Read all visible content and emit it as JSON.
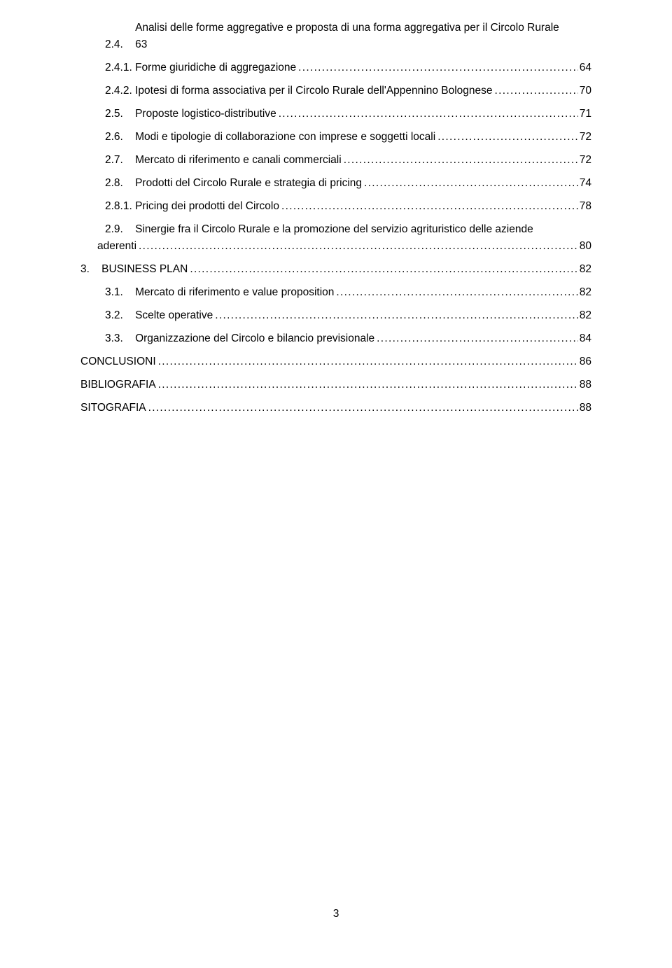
{
  "dots": "...............................................................................................................................................................",
  "entries": [
    {
      "indent": "indent-1",
      "num": "2.4.    ",
      "line1": "Analisi delle forme aggregative e proposta di una forma aggregativa per il Circolo Rurale",
      "lastline": "63",
      "hangIndent": true,
      "noDots": true,
      "page": ""
    },
    {
      "indent": "indent-1",
      "num": "",
      "lastline": "2.4.1. Forme giuridiche di aggregazione",
      "page": "64"
    },
    {
      "indent": "indent-1",
      "num": "",
      "lastline": "2.4.2. Ipotesi di forma associativa per il Circolo Rurale dell'Appennino Bolognese",
      "page": "70"
    },
    {
      "indent": "indent-1",
      "num": "2.5.    ",
      "lastline": "Proposte logistico-distributive",
      "page": "71"
    },
    {
      "indent": "indent-1",
      "num": "2.6.    ",
      "lastline": "Modi e tipologie di collaborazione con imprese e soggetti locali",
      "page": "72"
    },
    {
      "indent": "indent-1",
      "num": "2.7.    ",
      "lastline": "Mercato di riferimento e canali commerciali",
      "page": "72"
    },
    {
      "indent": "indent-1",
      "num": "2.8.    ",
      "lastline": "Prodotti del Circolo Rurale e strategia di pricing",
      "page": "74"
    },
    {
      "indent": "indent-1",
      "num": "",
      "lastline": "2.8.1. Pricing dei prodotti del Circolo",
      "page": "78"
    },
    {
      "indent": "indent-1",
      "num": "2.9.    ",
      "line1": "Sinergie fra il Circolo Rurale e la promozione del servizio agrituristico delle aziende",
      "lastline": "aderenti",
      "hangLeft": true,
      "page": "80"
    },
    {
      "indent": "indent-0",
      "num": "3.    ",
      "lastline": "BUSINESS PLAN",
      "page": "82"
    },
    {
      "indent": "indent-1",
      "num": "3.1.    ",
      "lastline": "Mercato di riferimento e value proposition",
      "page": "82"
    },
    {
      "indent": "indent-1",
      "num": "3.2.    ",
      "lastline": "Scelte operative",
      "page": "82"
    },
    {
      "indent": "indent-1",
      "num": "3.3.    ",
      "lastline": "Organizzazione del Circolo e bilancio previsionale",
      "page": "84"
    },
    {
      "indent": "indent-0",
      "num": "",
      "lastline": "CONCLUSIONI",
      "page": "86"
    },
    {
      "indent": "indent-0",
      "num": "",
      "lastline": "BIBLIOGRAFIA",
      "page": "88"
    },
    {
      "indent": "indent-0",
      "num": "",
      "lastline": "SITOGRAFIA",
      "page": "88"
    }
  ],
  "pageNumber": "3"
}
